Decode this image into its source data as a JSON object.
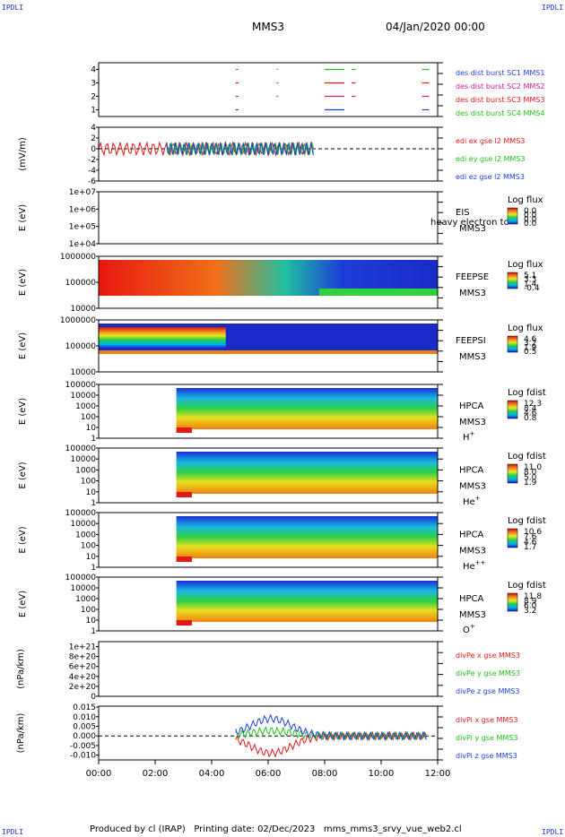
{
  "corners": {
    "tl": "IPDLI",
    "tr": "IPDLI",
    "bl": "IPDLI",
    "br": "IPDLI"
  },
  "header": {
    "spacecraft": "MMS3",
    "datetime": "04/Jan/2020 00:00"
  },
  "footer": {
    "text": "Produced by cl (IRAP)   Printing date: 02/Dec/2023   mms_mms3_srvy_vue_web2.cl"
  },
  "colors": {
    "sc1": "#1f3fd6",
    "sc2": "#d01a8a",
    "sc3": "#e01818",
    "sc4": "#22c01a",
    "x": "#e01818",
    "y": "#22c01a",
    "z": "#1f3fd6"
  },
  "chart_data": [
    {
      "type": "line",
      "title": "burst intervals",
      "yticks": [
        "4",
        "3",
        "2",
        "1"
      ],
      "ylim": [
        0.5,
        4.5
      ],
      "legend": [
        {
          "name": "des dist burst SC1 MMS1",
          "color": "#1f3fd6"
        },
        {
          "name": "des dist burst SC2 MMS2",
          "color": "#d01a8a"
        },
        {
          "name": "des dist burst SC3 MMS3",
          "color": "#e01818"
        },
        {
          "name": "des dist burst SC4 MMS4",
          "color": "#22c01a"
        }
      ],
      "series": [
        {
          "name": "des dist burst SC1 MMS1",
          "level": 1,
          "intervals": [
            [
              4.85,
              4.95
            ],
            [
              8.0,
              8.7
            ],
            [
              11.45,
              11.7
            ]
          ]
        },
        {
          "name": "des dist burst SC2 MMS2",
          "level": 2,
          "intervals": [
            [
              4.85,
              4.95
            ],
            [
              6.3,
              6.35
            ],
            [
              8.0,
              8.7
            ],
            [
              8.95,
              9.1
            ],
            [
              11.45,
              11.7
            ]
          ]
        },
        {
          "name": "des dist burst SC3 MMS3",
          "level": 3,
          "intervals": [
            [
              4.85,
              4.95
            ],
            [
              6.3,
              6.35
            ],
            [
              8.0,
              8.7
            ],
            [
              8.95,
              9.1
            ],
            [
              11.45,
              11.7
            ]
          ]
        },
        {
          "name": "des dist burst SC4 MMS4",
          "level": 4,
          "intervals": [
            [
              4.85,
              4.95
            ],
            [
              6.3,
              6.35
            ],
            [
              8.0,
              8.7
            ],
            [
              8.95,
              9.1
            ],
            [
              11.45,
              11.7
            ]
          ]
        }
      ]
    },
    {
      "type": "line",
      "ylabel": "(mV/m)",
      "yticks": [
        "4",
        "2",
        "0",
        "-2",
        "-4",
        "-6"
      ],
      "ylim": [
        -6,
        4
      ],
      "legend": [
        {
          "name": "edi ex gse l2 MMS3",
          "color": "#e01818"
        },
        {
          "name": "edi ey gse l2 MMS3",
          "color": "#22c01a"
        },
        {
          "name": "edi ez gse l2 MMS3",
          "color": "#1f3fd6"
        }
      ]
    },
    {
      "type": "heatmap",
      "ylabel": "E (eV)",
      "yticks": [
        "1e+07",
        "1e+06",
        "1e+05",
        "1e+04"
      ],
      "instrument": "EIS",
      "sc": "MMS3",
      "species": "",
      "cbtitle": "Log flux",
      "cbvals": [
        "0.0",
        "0.0",
        "0.0",
        "0.0"
      ],
      "extra": "heavy electron to",
      "data_span": [
        0,
        0
      ]
    },
    {
      "type": "heatmap",
      "ylabel": "E (eV)",
      "yticks": [
        "1000000",
        "100000",
        "10000"
      ],
      "instrument": "FEEPSE",
      "sc": "MMS3",
      "species": "",
      "cbtitle": "Log flux",
      "cbvals": [
        "5.1",
        "3.3",
        "1.4",
        "-0.4"
      ],
      "data_span": [
        0,
        12
      ]
    },
    {
      "type": "heatmap",
      "ylabel": "E (eV)",
      "yticks": [
        "1000000",
        "100000",
        "10000"
      ],
      "instrument": "FEEPSI",
      "sc": "MMS3",
      "species": "",
      "cbtitle": "Log flux",
      "cbvals": [
        "4.6",
        "3.2",
        "1.9",
        "0.5"
      ],
      "data_span": [
        0,
        12
      ]
    },
    {
      "type": "heatmap",
      "ylabel": "E (eV)",
      "yticks": [
        "100000",
        "10000",
        "1000",
        "100",
        "10",
        "1"
      ],
      "instrument": "HPCA",
      "sc": "MMS3",
      "species": "H",
      "charge": "+",
      "cbtitle": "Log fdist",
      "cbvals": [
        "12.3",
        "8.4",
        "4.6",
        "0.8"
      ],
      "data_span": [
        2.75,
        12
      ]
    },
    {
      "type": "heatmap",
      "ylabel": "E (eV)",
      "yticks": [
        "100000",
        "10000",
        "1000",
        "100",
        "10",
        "1"
      ],
      "instrument": "HPCA",
      "sc": "MMS3",
      "species": "He",
      "charge": "+",
      "cbtitle": "Log fdist",
      "cbvals": [
        "11.0",
        "8.0",
        "5.0",
        "1.9"
      ],
      "data_span": [
        2.75,
        12
      ]
    },
    {
      "type": "heatmap",
      "ylabel": "E (eV)",
      "yticks": [
        "100000",
        "10000",
        "1000",
        "100",
        "10",
        "1"
      ],
      "instrument": "HPCA",
      "sc": "MMS3",
      "species": "He",
      "charge": "++",
      "cbtitle": "Log fdist",
      "cbvals": [
        "10.6",
        "7.6",
        "4.6",
        "1.7"
      ],
      "data_span": [
        2.75,
        12
      ]
    },
    {
      "type": "heatmap",
      "ylabel": "E (eV)",
      "yticks": [
        "100000",
        "10000",
        "1000",
        "100",
        "10",
        "1"
      ],
      "instrument": "HPCA",
      "sc": "MMS3",
      "species": "O",
      "charge": "+",
      "cbtitle": "Log fdist",
      "cbvals": [
        "11.8",
        "8.9",
        "6.0",
        "3.2"
      ],
      "data_span": [
        2.75,
        12
      ]
    },
    {
      "type": "line",
      "ylabel": "(nPa/km)",
      "yticks": [
        "1e+21",
        "8e+20",
        "6e+20",
        "4e+20",
        "2e+20",
        "0"
      ],
      "ylim": [
        0,
        1.1e+21
      ],
      "legend": [
        {
          "name": "divPe x gse MMS3",
          "color": "#e01818"
        },
        {
          "name": "divPe y gse MMS3",
          "color": "#22c01a"
        },
        {
          "name": "divPe z gse MMS3",
          "color": "#1f3fd6"
        }
      ]
    },
    {
      "type": "line",
      "ylabel": "(nPa/km)",
      "yticks": [
        "0.015",
        "0.010",
        "0.005",
        "0.000",
        "-0.005",
        "-0.010"
      ],
      "ylim": [
        -0.0125,
        0.0155
      ],
      "legend": [
        {
          "name": "divPi x gse MMS3",
          "color": "#e01818"
        },
        {
          "name": "divPi y gse MMS3",
          "color": "#22c01a"
        },
        {
          "name": "divPi z gse MMS3",
          "color": "#1f3fd6"
        }
      ]
    }
  ],
  "xaxis": {
    "ticks": [
      "00:00",
      "02:00",
      "04:00",
      "06:00",
      "08:00",
      "10:00",
      "12:00"
    ],
    "range_hours": [
      0,
      12
    ]
  }
}
